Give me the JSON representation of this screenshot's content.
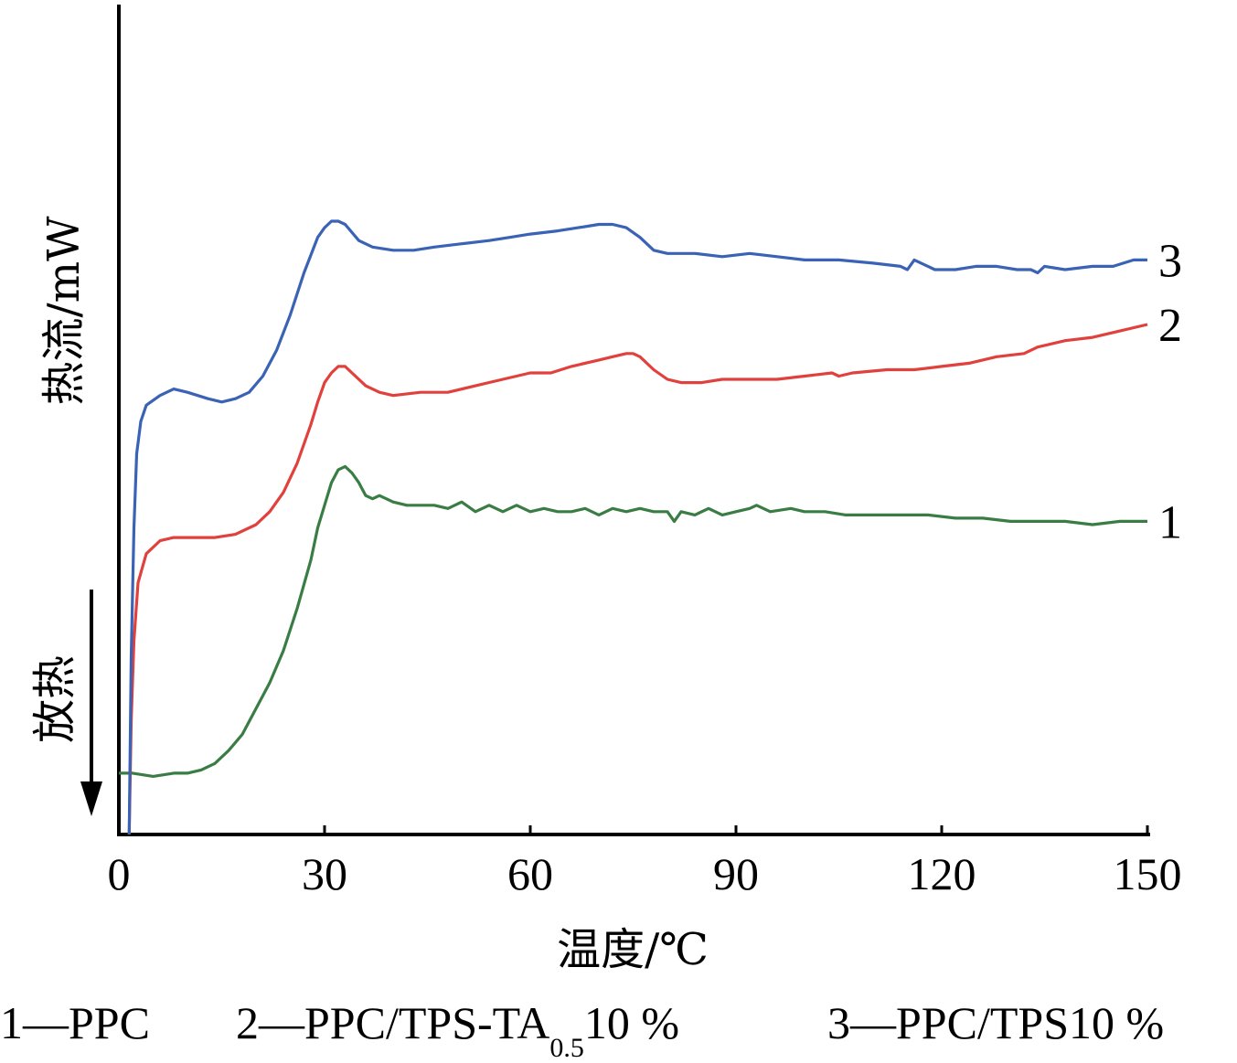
{
  "chart_data": {
    "type": "line",
    "xlabel": "温度/℃",
    "ylabel": "热流/mW",
    "annotation": "放热",
    "x_ticks": [
      0,
      30,
      60,
      90,
      120,
      150
    ],
    "xlim": [
      0,
      150
    ],
    "grid": false,
    "legend": "bottom",
    "series": [
      {
        "name": "1",
        "color": "#3a7d44",
        "points": [
          [
            0,
            -9.6
          ],
          [
            2,
            -9.6
          ],
          [
            5,
            -9.7
          ],
          [
            8,
            -9.6
          ],
          [
            10,
            -9.6
          ],
          [
            12,
            -9.5
          ],
          [
            14,
            -9.3
          ],
          [
            16,
            -8.9
          ],
          [
            18,
            -8.4
          ],
          [
            20,
            -7.6
          ],
          [
            22,
            -6.8
          ],
          [
            24,
            -5.8
          ],
          [
            26,
            -4.5
          ],
          [
            28,
            -3.0
          ],
          [
            29,
            -2.0
          ],
          [
            30,
            -1.3
          ],
          [
            31,
            -0.6
          ],
          [
            32,
            -0.2
          ],
          [
            33,
            -0.1
          ],
          [
            34,
            -0.3
          ],
          [
            35,
            -0.6
          ],
          [
            36,
            -1.0
          ],
          [
            37,
            -1.1
          ],
          [
            38,
            -1.0
          ],
          [
            40,
            -1.2
          ],
          [
            42,
            -1.3
          ],
          [
            44,
            -1.3
          ],
          [
            46,
            -1.3
          ],
          [
            48,
            -1.4
          ],
          [
            50,
            -1.2
          ],
          [
            52,
            -1.5
          ],
          [
            54,
            -1.3
          ],
          [
            56,
            -1.5
          ],
          [
            58,
            -1.3
          ],
          [
            60,
            -1.5
          ],
          [
            62,
            -1.4
          ],
          [
            64,
            -1.5
          ],
          [
            66,
            -1.5
          ],
          [
            68,
            -1.4
          ],
          [
            70,
            -1.6
          ],
          [
            72,
            -1.4
          ],
          [
            74,
            -1.5
          ],
          [
            76,
            -1.4
          ],
          [
            78,
            -1.5
          ],
          [
            80,
            -1.5
          ],
          [
            81,
            -1.8
          ],
          [
            82,
            -1.5
          ],
          [
            84,
            -1.6
          ],
          [
            86,
            -1.4
          ],
          [
            88,
            -1.6
          ],
          [
            90,
            -1.5
          ],
          [
            92,
            -1.4
          ],
          [
            93,
            -1.3
          ],
          [
            95,
            -1.5
          ],
          [
            98,
            -1.4
          ],
          [
            100,
            -1.5
          ],
          [
            103,
            -1.5
          ],
          [
            106,
            -1.6
          ],
          [
            110,
            -1.6
          ],
          [
            114,
            -1.6
          ],
          [
            118,
            -1.6
          ],
          [
            122,
            -1.7
          ],
          [
            126,
            -1.7
          ],
          [
            130,
            -1.8
          ],
          [
            134,
            -1.8
          ],
          [
            138,
            -1.8
          ],
          [
            142,
            -1.9
          ],
          [
            146,
            -1.8
          ],
          [
            150,
            -1.8
          ]
        ]
      },
      {
        "name": "2",
        "color": "#e0413d",
        "points": [
          [
            1.5,
            -11.5
          ],
          [
            1.8,
            -8.0
          ],
          [
            2.2,
            -5.5
          ],
          [
            2.8,
            -3.7
          ],
          [
            4,
            -2.8
          ],
          [
            6,
            -2.4
          ],
          [
            8,
            -2.3
          ],
          [
            10,
            -2.3
          ],
          [
            14,
            -2.3
          ],
          [
            17,
            -2.2
          ],
          [
            20,
            -1.9
          ],
          [
            22,
            -1.5
          ],
          [
            24,
            -0.9
          ],
          [
            26,
            0.0
          ],
          [
            28,
            1.2
          ],
          [
            29,
            1.9
          ],
          [
            30,
            2.5
          ],
          [
            31,
            2.8
          ],
          [
            32,
            3.0
          ],
          [
            33,
            3.0
          ],
          [
            34,
            2.8
          ],
          [
            36,
            2.4
          ],
          [
            38,
            2.2
          ],
          [
            40,
            2.1
          ],
          [
            44,
            2.2
          ],
          [
            48,
            2.2
          ],
          [
            52,
            2.4
          ],
          [
            56,
            2.6
          ],
          [
            60,
            2.8
          ],
          [
            63,
            2.8
          ],
          [
            66,
            3.0
          ],
          [
            70,
            3.2
          ],
          [
            72,
            3.3
          ],
          [
            74,
            3.4
          ],
          [
            75,
            3.4
          ],
          [
            76,
            3.3
          ],
          [
            78,
            2.9
          ],
          [
            80,
            2.6
          ],
          [
            82,
            2.5
          ],
          [
            85,
            2.5
          ],
          [
            88,
            2.6
          ],
          [
            92,
            2.6
          ],
          [
            96,
            2.6
          ],
          [
            100,
            2.7
          ],
          [
            104,
            2.8
          ],
          [
            105,
            2.7
          ],
          [
            107,
            2.8
          ],
          [
            112,
            2.9
          ],
          [
            116,
            2.9
          ],
          [
            120,
            3.0
          ],
          [
            124,
            3.1
          ],
          [
            128,
            3.3
          ],
          [
            132,
            3.4
          ],
          [
            134,
            3.6
          ],
          [
            138,
            3.8
          ],
          [
            142,
            3.9
          ],
          [
            146,
            4.1
          ],
          [
            150,
            4.3
          ]
        ]
      },
      {
        "name": "3",
        "color": "#3a62b5",
        "points": [
          [
            1.5,
            -11.5
          ],
          [
            1.8,
            -6.0
          ],
          [
            2.2,
            -2.0
          ],
          [
            2.6,
            0.3
          ],
          [
            3.2,
            1.3
          ],
          [
            4,
            1.8
          ],
          [
            6,
            2.1
          ],
          [
            8,
            2.3
          ],
          [
            10,
            2.2
          ],
          [
            13,
            2.0
          ],
          [
            15,
            1.9
          ],
          [
            17,
            2.0
          ],
          [
            19,
            2.2
          ],
          [
            21,
            2.7
          ],
          [
            23,
            3.5
          ],
          [
            25,
            4.6
          ],
          [
            27,
            5.9
          ],
          [
            29,
            7.0
          ],
          [
            30,
            7.3
          ],
          [
            31,
            7.5
          ],
          [
            32,
            7.5
          ],
          [
            33,
            7.4
          ],
          [
            35,
            6.9
          ],
          [
            37,
            6.7
          ],
          [
            40,
            6.6
          ],
          [
            43,
            6.6
          ],
          [
            46,
            6.7
          ],
          [
            50,
            6.8
          ],
          [
            54,
            6.9
          ],
          [
            57,
            7.0
          ],
          [
            60,
            7.1
          ],
          [
            64,
            7.2
          ],
          [
            67,
            7.3
          ],
          [
            70,
            7.4
          ],
          [
            72,
            7.4
          ],
          [
            74,
            7.3
          ],
          [
            76,
            7.0
          ],
          [
            78,
            6.6
          ],
          [
            80,
            6.5
          ],
          [
            84,
            6.5
          ],
          [
            88,
            6.4
          ],
          [
            92,
            6.5
          ],
          [
            96,
            6.4
          ],
          [
            100,
            6.3
          ],
          [
            105,
            6.3
          ],
          [
            110,
            6.2
          ],
          [
            114,
            6.1
          ],
          [
            115,
            6.0
          ],
          [
            116,
            6.3
          ],
          [
            117,
            6.2
          ],
          [
            119,
            6.0
          ],
          [
            122,
            6.0
          ],
          [
            125,
            6.1
          ],
          [
            128,
            6.1
          ],
          [
            131,
            6.0
          ],
          [
            133,
            6.0
          ],
          [
            134,
            5.9
          ],
          [
            135,
            6.1
          ],
          [
            138,
            6.0
          ],
          [
            142,
            6.1
          ],
          [
            145,
            6.1
          ],
          [
            148,
            6.3
          ],
          [
            150,
            6.3
          ]
        ]
      }
    ]
  },
  "legend_entries": [
    {
      "number": "1",
      "sep": "—",
      "text": "PPC"
    },
    {
      "number": "2",
      "sep": "—",
      "text": "PPC/TPS-TA",
      "sub": "0.5",
      "suffix": "10 %"
    },
    {
      "number": "3",
      "sep": "—",
      "text": "PPC/TPS10 %"
    }
  ]
}
